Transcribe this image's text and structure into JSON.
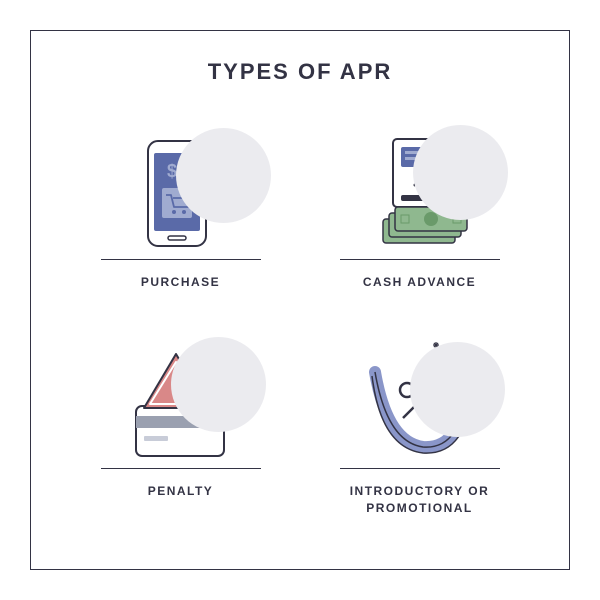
{
  "title": "TYPES OF APR",
  "colors": {
    "stroke": "#333344",
    "screen_fill": "#5a6aa8",
    "screen_accent": "#a0abd0",
    "circle_bg": "#ebebef",
    "cash_green": "#8fb88f",
    "cash_green_dark": "#6a9a6a",
    "warn_red": "#d98888",
    "card_grey": "#9aa0b0",
    "arrow_blue": "#8a96c9"
  },
  "cells": [
    {
      "label": "PURCHASE",
      "icon": "purchase"
    },
    {
      "label": "CASH ADVANCE",
      "icon": "cash"
    },
    {
      "label": "PENALTY",
      "icon": "penalty"
    },
    {
      "label": "INTRODUCTORY OR\nPROMOTIONAL",
      "icon": "promo"
    }
  ],
  "type": "infographic",
  "layout": "2x2 grid with title",
  "fontsize": {
    "title": 22,
    "label": 12
  }
}
